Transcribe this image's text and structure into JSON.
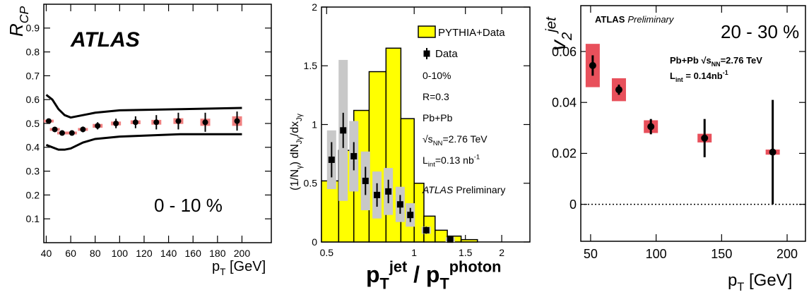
{
  "chart_data": [
    {
      "type": "scatter",
      "experiment": "ATLAS",
      "annotation": "0 - 10 %",
      "y_label": [
        "R",
        {
          "sub": "CP"
        }
      ],
      "x_label": [
        "p",
        {
          "sub": "T"
        },
        " [GeV]"
      ],
      "xlim": [
        38,
        224
      ],
      "ylim": [
        0,
        1
      ],
      "xticks": [
        40,
        60,
        80,
        100,
        120,
        140,
        160,
        180,
        200
      ],
      "yticks": [
        0.1,
        0.2,
        0.3,
        0.4,
        0.5,
        0.6,
        0.7,
        0.8,
        0.9
      ],
      "series": [
        {
          "color": "#000000",
          "sys_color": "#f08080",
          "x": [
            42,
            47,
            53,
            61,
            70,
            82,
            97,
            113,
            130,
            148,
            170,
            196
          ],
          "values": [
            0.51,
            0.475,
            0.46,
            0.46,
            0.475,
            0.49,
            0.5,
            0.505,
            0.505,
            0.51,
            0.505,
            0.51
          ],
          "errors": [
            0.01,
            0.01,
            0.01,
            0.01,
            0.012,
            0.015,
            0.02,
            0.025,
            0.03,
            0.035,
            0.04,
            0.04
          ],
          "sys": [
            0.005,
            0.005,
            0.005,
            0.005,
            0.006,
            0.008,
            0.008,
            0.008,
            0.01,
            0.012,
            0.015,
            0.02
          ]
        }
      ],
      "band": {
        "color": "#000000",
        "x": [
          40,
          45,
          50,
          55,
          60,
          70,
          80,
          100,
          150,
          200
        ],
        "upper": [
          0.62,
          0.6,
          0.56,
          0.535,
          0.525,
          0.535,
          0.545,
          0.555,
          0.56,
          0.565
        ],
        "lower": [
          0.41,
          0.4,
          0.39,
          0.39,
          0.395,
          0.42,
          0.435,
          0.445,
          0.455,
          0.455
        ]
      }
    },
    {
      "type": "histogram",
      "x_log": true,
      "hist_name": "PYTHIA+Data",
      "color": "#ffff00",
      "y_label": [
        "(1/N",
        {
          "sub": "γ"
        },
        ") dN",
        {
          "sub": "Jγ"
        },
        "/dx",
        {
          "sub": "Jγ"
        }
      ],
      "x_label": [
        "p",
        {
          "sub": "T"
        },
        {
          "sup": "jet"
        },
        " / p",
        {
          "sub": "T"
        },
        {
          "sup": "photon"
        }
      ],
      "xlim": [
        0.48,
        2.5
      ],
      "ylim": [
        0,
        2
      ],
      "xticks": [
        0.5,
        1,
        1.5,
        2
      ],
      "yticks": [
        0,
        0.5,
        1,
        1.5,
        2
      ],
      "bins": [
        0.48,
        0.55,
        0.62,
        0.7,
        0.8,
        0.9,
        1.0,
        1.08,
        1.18,
        1.3,
        1.45,
        1.65
      ],
      "counts": [
        0.52,
        0.78,
        1.12,
        1.45,
        1.65,
        1.05,
        0.5,
        0.22,
        0.1,
        0.05,
        0.02
      ],
      "points": {
        "name": "Data",
        "color": "#000000",
        "sys_color": "#c8c8c8",
        "x": [
          0.52,
          0.57,
          0.62,
          0.68,
          0.745,
          0.815,
          0.895,
          0.97,
          1.1,
          1.33
        ],
        "values": [
          0.7,
          0.95,
          0.73,
          0.52,
          0.4,
          0.43,
          0.32,
          0.23,
          0.1,
          0.02
        ],
        "errors": [
          0.15,
          0.15,
          0.12,
          0.12,
          0.1,
          0.1,
          0.08,
          0.06,
          0.03,
          0.02
        ],
        "sys": [
          0.25,
          0.6,
          0.3,
          0.25,
          0.2,
          0.2,
          0.15,
          0.1,
          0.03,
          0.02
        ]
      },
      "annotations": [
        [
          "0-10%"
        ],
        [
          "R=0.3"
        ],
        [
          "Pb+Pb"
        ],
        [
          "√s",
          {
            "sub": "NN"
          },
          "=2.76 TeV"
        ],
        [
          "L",
          {
            "sub": "int"
          },
          "=0.13 nb",
          {
            "sup": "-1"
          }
        ]
      ],
      "experiment": "ATLAS",
      "status": "Preliminary"
    },
    {
      "type": "scatter",
      "experiment": "ATLAS",
      "status": "Preliminary",
      "annotation": "20 - 30 %",
      "annotations": [
        [
          "Pb+Pb √s",
          {
            "sub": "NN"
          },
          "=2.76 TeV"
        ],
        [
          "L",
          {
            "sub": "int"
          },
          " = 0.14nb",
          {
            "sup": "-1"
          }
        ]
      ],
      "y_label": [
        "v",
        {
          "sub": "2"
        },
        {
          "sup": "jet"
        }
      ],
      "x_label": [
        "p",
        {
          "sub": "T"
        },
        " [GeV]"
      ],
      "xlim": [
        42.5,
        214
      ],
      "ylim": [
        -0.0145,
        0.078
      ],
      "xticks": [
        50,
        100,
        150,
        200
      ],
      "yticks": [
        0,
        0.02,
        0.04,
        0.06
      ],
      "zero_line": true,
      "series": [
        {
          "color": "#000000",
          "sys_color": "#e8505b",
          "x": [
            51.6,
            71.6,
            96,
            137,
            189
          ],
          "values": [
            0.0545,
            0.045,
            0.0305,
            0.026,
            0.0205
          ],
          "errors": [
            0.004,
            0.002,
            0.003,
            0.0075,
            0.0205
          ],
          "sys": [
            0.0085,
            0.0045,
            0.0025,
            0.0017,
            0.001
          ]
        }
      ]
    }
  ]
}
